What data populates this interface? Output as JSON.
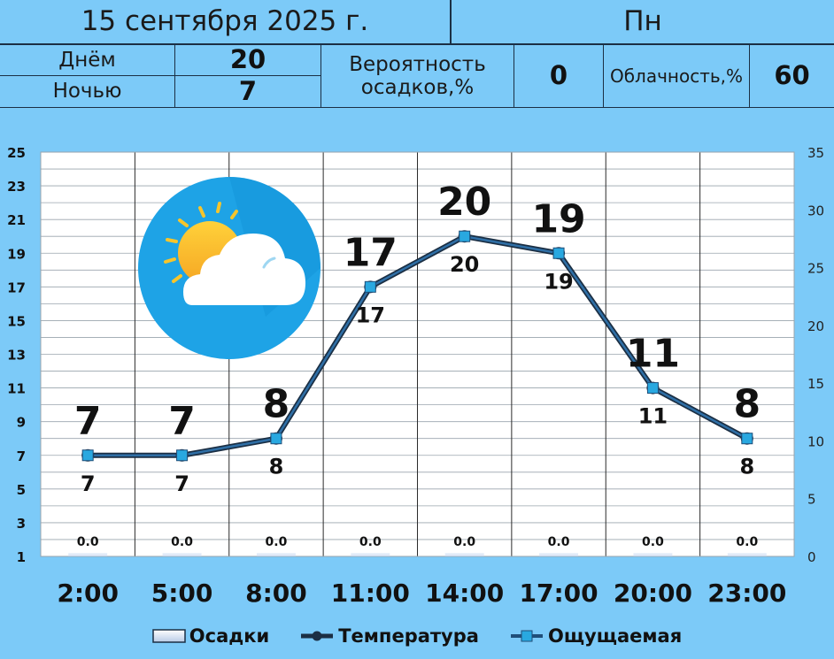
{
  "header": {
    "date": "15 сентября 2025 г.",
    "weekday": "Пн",
    "day_label": "Днём",
    "day_value": "20",
    "night_label": "Ночью",
    "night_value": "7",
    "precip_label_1": "Вероятность",
    "precip_label_2": "осадков,%",
    "precip_value": "0",
    "cloud_label": "Облачность,%",
    "cloud_value": "60"
  },
  "weather_icon": "sun-behind-cloud-icon",
  "colors": {
    "background": "#7ccaf8",
    "temperature_line": "#1f4e79",
    "feels_like_marker": "#29a8e0",
    "icon_circle": "#1ea3e6"
  },
  "chart_data": {
    "type": "line",
    "categories": [
      "2:00",
      "5:00",
      "8:00",
      "11:00",
      "14:00",
      "17:00",
      "20:00",
      "23:00"
    ],
    "series": [
      {
        "name": "Температура",
        "values": [
          7,
          7,
          8,
          17,
          20,
          19,
          11,
          8
        ]
      },
      {
        "name": "Ощущаемая",
        "values": [
          7,
          7,
          8,
          17,
          20,
          19,
          11,
          8
        ]
      },
      {
        "name": "Осадки",
        "values": [
          0.0,
          0.0,
          0.0,
          0.0,
          0.0,
          0.0,
          0.0,
          0.0
        ]
      }
    ],
    "temperature_labels": [
      "7",
      "7",
      "8",
      "17",
      "20",
      "19",
      "11",
      "8"
    ],
    "feels_like_labels": [
      "7",
      "7",
      "8",
      "17",
      "20",
      "19",
      "11",
      "8"
    ],
    "precip_labels": [
      "0.0",
      "0.0",
      "0.0",
      "0.0",
      "0.0",
      "0.0",
      "0.0",
      "0.0"
    ],
    "ylim": [
      1,
      25
    ],
    "y_ticks": [
      "25",
      "23",
      "21",
      "19",
      "17",
      "15",
      "13",
      "11",
      "9",
      "7",
      "5",
      "3",
      "1"
    ],
    "y2lim": [
      0,
      35
    ],
    "y2_ticks": [
      "35",
      "30",
      "25",
      "20",
      "15",
      "10",
      "5",
      "0"
    ],
    "grid": true,
    "legend_position": "bottom"
  },
  "legend": {
    "precip": "Осадки",
    "temperature": "Температура",
    "feels_like": "Ощущаемая"
  }
}
